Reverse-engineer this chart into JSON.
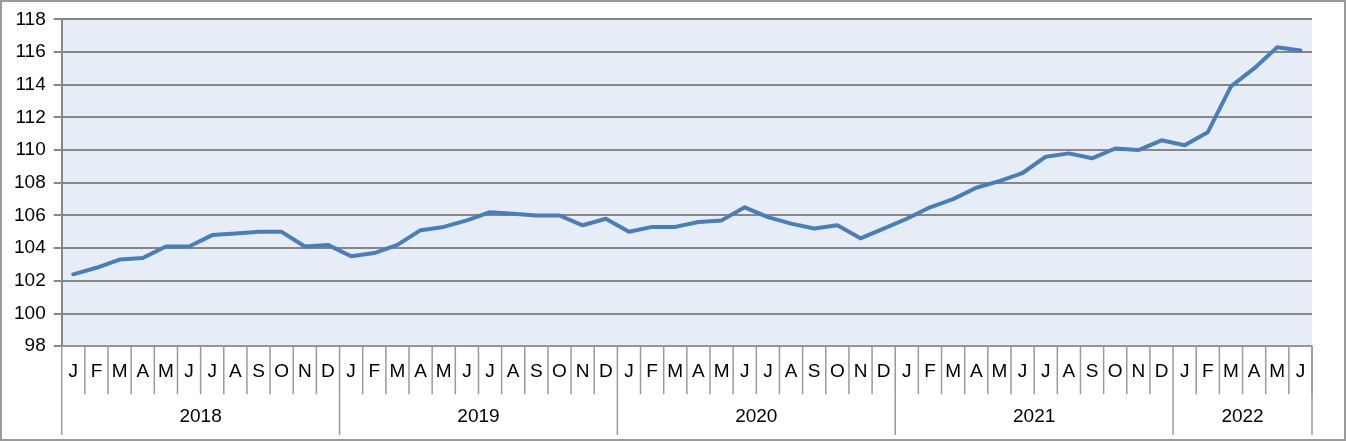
{
  "chart_data": {
    "type": "line",
    "categories": [
      "J",
      "F",
      "M",
      "A",
      "M",
      "J",
      "J",
      "A",
      "S",
      "O",
      "N",
      "D",
      "J",
      "F",
      "M",
      "A",
      "M",
      "J",
      "J",
      "A",
      "S",
      "O",
      "N",
      "D",
      "J",
      "F",
      "M",
      "A",
      "M",
      "J",
      "J",
      "A",
      "S",
      "O",
      "N",
      "D",
      "J",
      "F",
      "M",
      "A",
      "M",
      "J",
      "J",
      "A",
      "S",
      "O",
      "N",
      "D",
      "J",
      "F",
      "M",
      "A",
      "M",
      "J"
    ],
    "series": [
      {
        "color": "#4a7ebb",
        "values": [
          102.4,
          102.8,
          103.3,
          103.4,
          104.1,
          104.1,
          104.8,
          104.9,
          105.0,
          105.0,
          104.1,
          104.2,
          103.5,
          103.7,
          104.2,
          105.1,
          105.3,
          105.7,
          106.2,
          106.1,
          106.0,
          106.0,
          105.4,
          105.8,
          105.0,
          105.3,
          105.3,
          105.6,
          105.7,
          106.5,
          105.9,
          105.5,
          105.2,
          105.4,
          104.6,
          105.2,
          105.8,
          106.5,
          107.0,
          107.7,
          108.1,
          108.6,
          109.6,
          109.8,
          109.5,
          110.1,
          110.0,
          110.6,
          110.3,
          111.1,
          113.9,
          115.0,
          116.3,
          116.1
        ]
      }
    ],
    "annotations": [
      "2018",
      "2019",
      "2020",
      "2021",
      "2022"
    ],
    "ylim": [
      98,
      118
    ],
    "yticks": [
      98,
      100,
      102,
      104,
      106,
      108,
      110,
      112,
      114,
      116,
      118
    ],
    "grid": "y",
    "legend": false,
    "marker": "none",
    "line_style": "solid"
  }
}
